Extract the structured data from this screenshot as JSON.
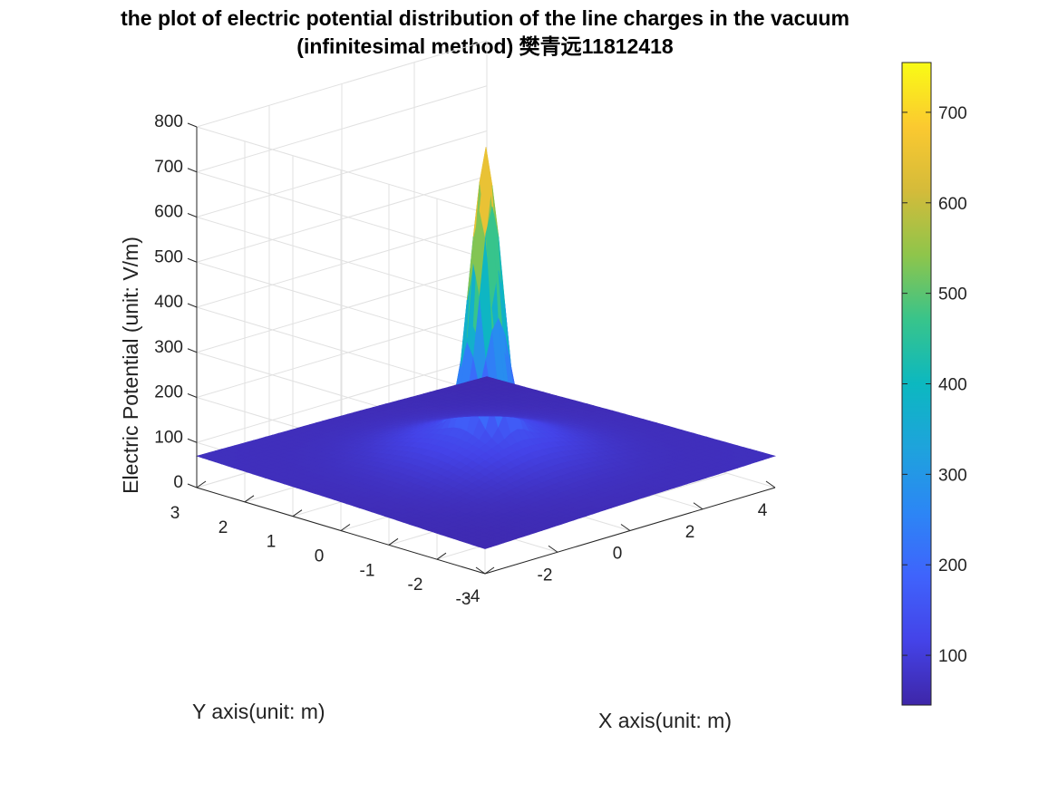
{
  "chart_data": {
    "type": "surface",
    "title": "the plot of electric potential distribution of the line charges in the vacuum",
    "subtitle": "(infinitesimal method) 樊青远11812418",
    "xlabel": "X axis(unit: m)",
    "ylabel": "Y axis(unit: m)",
    "zlabel": "Electric Potential (unit: V/m)",
    "xlim": [
      -4,
      4
    ],
    "ylim": [
      -3,
      3
    ],
    "zlim": [
      0,
      800
    ],
    "x_ticks": [
      "-4",
      "-2",
      "0",
      "2",
      "4"
    ],
    "y_ticks": [
      "-3",
      "-2",
      "-1",
      "0",
      "1",
      "2",
      "3"
    ],
    "z_ticks": [
      "0",
      "100",
      "200",
      "300",
      "400",
      "500",
      "600",
      "700",
      "800"
    ],
    "colorbar_ticks": [
      "100",
      "200",
      "300",
      "400",
      "500",
      "600",
      "700"
    ],
    "colorbar_range": [
      45,
      755
    ],
    "colormap": "parula",
    "grid": true,
    "peak": {
      "x": 0,
      "y": 0,
      "z": 755
    },
    "edge_values": {
      "x_min_y_min": 55,
      "x_max_y_max": 55,
      "x_min_y_max": 70,
      "x_max_y_min": 70
    }
  }
}
